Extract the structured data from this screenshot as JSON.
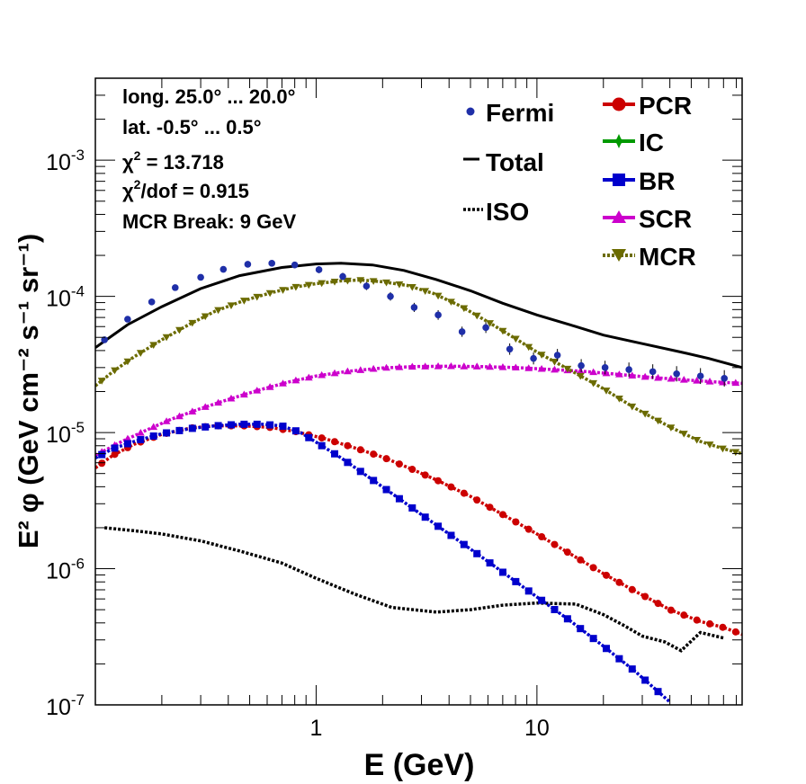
{
  "chart_data": {
    "type": "line",
    "xlabel": "E (GeV)",
    "ylabel": "E² φ (GeV cm⁻² s⁻¹ sr⁻¹)",
    "xscale": "log",
    "yscale": "log",
    "xlim": [
      0.1,
      85
    ],
    "ylim": [
      1e-07,
      0.004
    ],
    "x_tick_labels": [
      "1",
      "10"
    ],
    "y_tick_labels": [
      {
        "base": "10",
        "exp": "-7"
      },
      {
        "base": "10",
        "exp": "-6"
      },
      {
        "base": "10",
        "exp": "-5"
      },
      {
        "base": "10",
        "exp": "-4"
      },
      {
        "base": "10",
        "exp": "-3"
      }
    ],
    "grid": false,
    "annotations": [
      {
        "key": "long",
        "text": "long. 25.0° ... 20.0°"
      },
      {
        "key": "lat",
        "text": "lat. -0.5° ... 0.5°"
      },
      {
        "key": "chi2",
        "text_pre": "χ",
        "sup": "2",
        "text_post": " = 13.718"
      },
      {
        "key": "chi2dof",
        "text_pre": "χ",
        "sup": "2",
        "text_post": "/dof = 0.915"
      },
      {
        "key": "break",
        "text": "MCR Break:  9 GeV"
      }
    ],
    "legend": {
      "placement": "top-right",
      "col1": [
        "Fermi",
        "Total",
        "ISO"
      ],
      "col2": [
        "PCR",
        "IC",
        "BR",
        "SCR",
        "MCR"
      ]
    },
    "series": [
      {
        "name": "Fermi",
        "style": "points",
        "color": "#1f2fa8",
        "x": [
          0.11,
          0.14,
          0.18,
          0.23,
          0.3,
          0.38,
          0.49,
          0.63,
          0.8,
          1.03,
          1.32,
          1.69,
          2.17,
          2.78,
          3.57,
          4.58,
          5.87,
          7.53,
          9.65,
          12.38,
          15.87,
          20.35,
          26.1,
          33.47,
          42.92,
          55.04,
          70.58
        ],
        "y": [
          4.8e-05,
          6.8e-05,
          9.1e-05,
          0.000116,
          0.000138,
          0.000158,
          0.000172,
          0.000175,
          0.00017,
          0.000157,
          0.00014,
          0.000119,
          0.0001,
          8.3e-05,
          7.3e-05,
          5.5e-05,
          5.9e-05,
          4.1e-05,
          3.5e-05,
          3.7e-05,
          3.1e-05,
          3e-05,
          2.9e-05,
          2.8e-05,
          2.7e-05,
          2.6e-05,
          2.5e-05
        ]
      },
      {
        "name": "Total",
        "style": "line",
        "color": "#000000",
        "x": [
          0.1,
          0.14,
          0.2,
          0.3,
          0.45,
          0.7,
          1.0,
          1.3,
          1.8,
          2.5,
          3.5,
          5.0,
          7.0,
          10,
          15,
          20,
          30,
          45,
          60,
          85
        ],
        "y": [
          4.2e-05,
          6.2e-05,
          8.4e-05,
          0.000114,
          0.000142,
          0.000163,
          0.000173,
          0.000175,
          0.00017,
          0.000155,
          0.000133,
          0.00011,
          8.9e-05,
          7.3e-05,
          6e-05,
          5.2e-05,
          4.5e-05,
          3.9e-05,
          3.5e-05,
          3e-05
        ]
      },
      {
        "name": "ISO",
        "style": "dotted",
        "color": "#000000",
        "x": [
          0.11,
          0.15,
          0.2,
          0.3,
          0.45,
          0.7,
          1.0,
          1.5,
          2.2,
          3.5,
          5,
          7,
          10,
          15,
          20,
          25,
          30,
          38,
          45,
          55,
          70
        ],
        "y": [
          2e-06,
          1.9e-06,
          1.8e-06,
          1.6e-06,
          1.35e-06,
          1.1e-06,
          8.5e-07,
          6.5e-07,
          5.2e-07,
          4.8e-07,
          5e-07,
          5.4e-07,
          5.6e-07,
          5.5e-07,
          4.6e-07,
          3.8e-07,
          3.2e-07,
          2.9e-07,
          2.5e-07,
          3.4e-07,
          3.1e-07
        ]
      },
      {
        "name": "PCR",
        "style": "dotted-markers",
        "marker": "circle",
        "color": "#cc0000",
        "x": [
          0.1,
          0.12,
          0.15,
          0.2,
          0.27,
          0.35,
          0.47,
          0.62,
          0.8,
          1.1,
          1.5,
          2.0,
          2.7,
          3.6,
          5,
          7,
          10,
          14,
          20,
          28,
          40,
          55,
          70,
          85
        ],
        "y": [
          5.5e-06,
          6.8e-06,
          8.2e-06,
          9.7e-06,
          1.08e-05,
          1.12e-05,
          1.12e-05,
          1.09e-05,
          1.02e-05,
          9e-06,
          7.7e-06,
          6.6e-06,
          5.4e-06,
          4.4e-06,
          3.4e-06,
          2.5e-06,
          1.8e-06,
          1.3e-06,
          9.2e-07,
          6.8e-07,
          5e-07,
          4.1e-07,
          3.7e-07,
          3.3e-07
        ]
      },
      {
        "name": "BR",
        "style": "dotted-markers",
        "marker": "square",
        "color": "#0000cc",
        "x": [
          0.1,
          0.12,
          0.15,
          0.2,
          0.27,
          0.35,
          0.45,
          0.57,
          0.7,
          0.85,
          1.0,
          1.3,
          1.7,
          2.3,
          3.0,
          4.0,
          5.5,
          7.5,
          10,
          14,
          20,
          28,
          40
        ],
        "y": [
          6.5e-06,
          7.6e-06,
          8.6e-06,
          9.8e-06,
          1.07e-05,
          1.12e-05,
          1.15e-05,
          1.15e-05,
          1.12e-05,
          1e-05,
          8.5e-06,
          6.5e-06,
          4.8e-06,
          3.4e-06,
          2.5e-06,
          1.8e-06,
          1.25e-06,
          8.7e-07,
          6.2e-07,
          4.2e-07,
          2.7e-07,
          1.75e-07,
          1.05e-07
        ]
      },
      {
        "name": "SCR",
        "style": "dotted-markers",
        "marker": "triangle-up",
        "color": "#cc00cc",
        "x": [
          0.1,
          0.13,
          0.17,
          0.22,
          0.3,
          0.4,
          0.55,
          0.75,
          1.0,
          1.4,
          2.0,
          2.8,
          4.0,
          5.5,
          8,
          11,
          16,
          22,
          32,
          45,
          65,
          85
        ],
        "y": [
          6.8e-06,
          8.5e-06,
          1.04e-05,
          1.25e-05,
          1.5e-05,
          1.75e-05,
          2.05e-05,
          2.35e-05,
          2.6e-05,
          2.82e-05,
          2.98e-05,
          3.05e-05,
          3.07e-05,
          3.05e-05,
          3e-05,
          2.92e-05,
          2.82e-05,
          2.7e-05,
          2.55e-05,
          2.45e-05,
          2.35e-05,
          2.3e-05
        ]
      },
      {
        "name": "MCR",
        "style": "dotted-markers",
        "marker": "triangle-down",
        "color": "#6b6b00",
        "x": [
          0.1,
          0.12,
          0.15,
          0.2,
          0.27,
          0.35,
          0.47,
          0.62,
          0.8,
          1.0,
          1.3,
          1.6,
          2.0,
          2.6,
          3.4,
          4.5,
          6,
          8,
          10,
          14,
          20,
          28,
          40,
          55,
          70,
          85
        ],
        "y": [
          2.2e-05,
          2.8e-05,
          3.6e-05,
          4.8e-05,
          6.3e-05,
          7.8e-05,
          9.3e-05,
          0.000106,
          0.000117,
          0.000124,
          0.00013,
          0.000132,
          0.000128,
          0.00012,
          0.000105,
          8.5e-05,
          6.5e-05,
          4.9e-05,
          3.9e-05,
          2.9e-05,
          2.1e-05,
          1.5e-05,
          1.1e-05,
          8.6e-06,
          7.6e-06,
          7e-06
        ]
      },
      {
        "name": "IC",
        "style": "dotted-markers",
        "marker": "star",
        "color": "#009900",
        "x": [],
        "y": []
      }
    ]
  }
}
